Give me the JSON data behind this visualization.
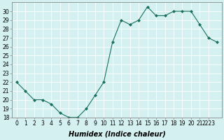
{
  "x": [
    0,
    1,
    2,
    3,
    4,
    5,
    6,
    7,
    8,
    9,
    10,
    11,
    12,
    13,
    14,
    15,
    16,
    17,
    18,
    19,
    20,
    21,
    22,
    23
  ],
  "y": [
    22,
    21,
    20,
    20,
    19.5,
    18.5,
    18,
    18,
    19,
    20.5,
    22,
    26.5,
    29,
    28.5,
    29,
    30.5,
    29.5,
    29.5,
    30,
    30,
    30,
    28.5,
    27,
    26.5
  ],
  "line_color": "#1a7060",
  "marker": "D",
  "markersize": 2.0,
  "linewidth": 0.8,
  "xlabel": "Humidex (Indice chaleur)",
  "xlabel_fontsize": 7,
  "xlabel_fontweight": "bold",
  "xlabel_fontstyle": "italic",
  "ylim": [
    18,
    31
  ],
  "xlim": [
    -0.5,
    23.5
  ],
  "yticks": [
    18,
    19,
    20,
    21,
    22,
    23,
    24,
    25,
    26,
    27,
    28,
    29,
    30
  ],
  "ytick_labels": [
    "18",
    "19",
    "20",
    "21",
    "22",
    "23",
    "24",
    "25",
    "26",
    "27",
    "28",
    "29",
    "30"
  ],
  "xtick_labels": [
    "0",
    "1",
    "2",
    "3",
    "4",
    "5",
    "6",
    "7",
    "8",
    "9",
    "10",
    "11",
    "12",
    "13",
    "14",
    "15",
    "16",
    "17",
    "18",
    "19",
    "20",
    "21",
    "2223"
  ],
  "xtick_positions": [
    0,
    1,
    2,
    3,
    4,
    5,
    6,
    7,
    8,
    9,
    10,
    11,
    12,
    13,
    14,
    15,
    16,
    17,
    18,
    19,
    20,
    21,
    22
  ],
  "bg_color": "#d4f0f0",
  "grid_color": "#ffffff",
  "grid_linewidth": 0.6,
  "tick_fontsize": 5.5,
  "spine_color": "#888888",
  "spine_linewidth": 0.6
}
